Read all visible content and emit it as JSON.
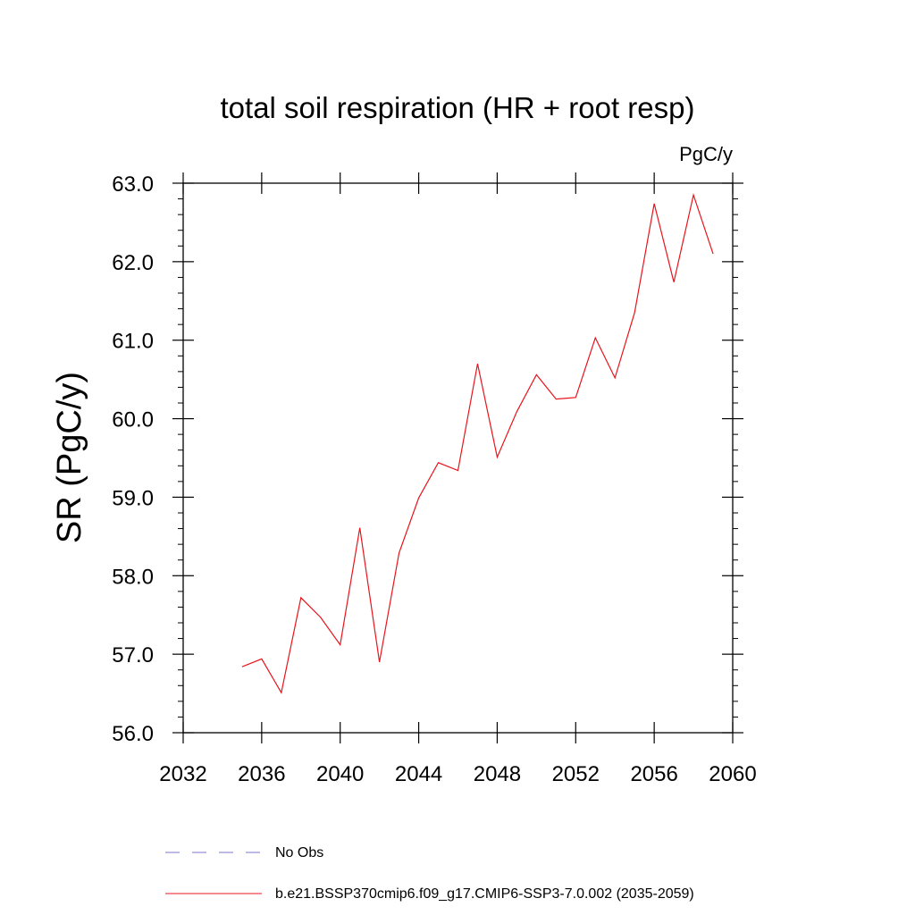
{
  "chart_data": {
    "type": "line",
    "title": "total soil respiration (HR + root resp)",
    "units": "PgC/y",
    "ylabel": "SR  (PgC/y)",
    "xlabel": "",
    "xlim": [
      2032,
      2060
    ],
    "ylim": [
      56.0,
      63.0
    ],
    "x_ticks": [
      2032,
      2036,
      2040,
      2044,
      2048,
      2052,
      2056,
      2060
    ],
    "x_tick_labels": [
      "2032",
      "2036",
      "2040",
      "2044",
      "2048",
      "2052",
      "2056",
      "2060"
    ],
    "y_ticks": [
      56.0,
      57.0,
      58.0,
      59.0,
      60.0,
      61.0,
      62.0,
      63.0
    ],
    "y_tick_labels": [
      "56.0",
      "57.0",
      "58.0",
      "59.0",
      "60.0",
      "61.0",
      "62.0",
      "63.0"
    ],
    "grid": false,
    "series": [
      {
        "name": "b.e21.BSSP370cmip6.f09_g17.CMIP6-SSP3-7.0.002 (2035-2059)",
        "color": "#e8141c",
        "style": "solid",
        "x": [
          2035,
          2036,
          2037,
          2038,
          2039,
          2040,
          2041,
          2042,
          2043,
          2044,
          2045,
          2046,
          2047,
          2048,
          2049,
          2050,
          2051,
          2052,
          2053,
          2054,
          2055,
          2056,
          2057,
          2058,
          2059
        ],
        "values": [
          56.84,
          56.94,
          56.51,
          57.72,
          57.47,
          57.12,
          58.61,
          56.9,
          58.29,
          58.99,
          59.44,
          59.34,
          60.7,
          59.51,
          60.09,
          60.56,
          60.25,
          60.27,
          61.03,
          60.52,
          61.35,
          62.74,
          61.74,
          62.85,
          62.1
        ]
      }
    ],
    "legend": [
      {
        "label": "No Obs",
        "color": "#7b74c8",
        "style": "dashed"
      },
      {
        "label": "b.e21.BSSP370cmip6.f09_g17.CMIP6-SSP3-7.0.002 (2035-2059)",
        "color": "#e8141c",
        "style": "solid"
      }
    ]
  }
}
